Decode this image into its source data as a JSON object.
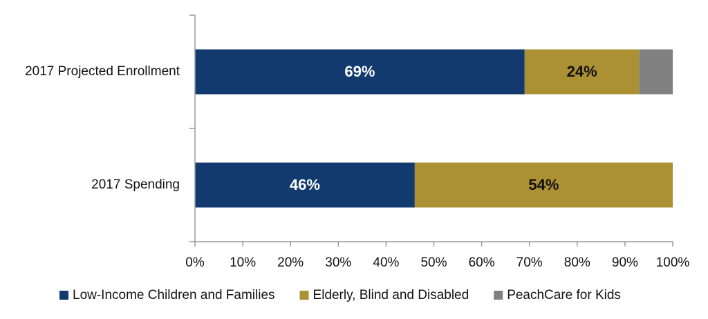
{
  "chart_data": {
    "type": "stacked_bar_horizontal",
    "categories": [
      "2017 Projected Enrollment",
      "2017 Spending"
    ],
    "series": [
      {
        "name": "Low-Income Children and Families",
        "color": "#123a6e",
        "values": [
          69,
          46
        ],
        "value_labels": [
          "69%",
          "46%"
        ]
      },
      {
        "name": "Elderly, Blind and Disabled",
        "color": "#ab9034",
        "values": [
          24,
          54
        ],
        "value_labels": [
          "24%",
          "54%"
        ]
      },
      {
        "name": "PeachCare for Kids",
        "color": "#808080",
        "values": [
          7,
          0
        ]
      }
    ],
    "xlim": [
      0,
      100
    ],
    "xticks": [
      {
        "value": 0,
        "label": "0%"
      },
      {
        "value": 10,
        "label": "10%"
      },
      {
        "value": 20,
        "label": "20%"
      },
      {
        "value": 30,
        "label": "30%"
      },
      {
        "value": 40,
        "label": "40%"
      },
      {
        "value": 50,
        "label": "50%"
      },
      {
        "value": 60,
        "label": "60%"
      },
      {
        "value": 70,
        "label": "70%"
      },
      {
        "value": 80,
        "label": "80%"
      },
      {
        "value": 90,
        "label": "90%"
      },
      {
        "value": 100,
        "label": "100%"
      }
    ],
    "legend": "bottom"
  }
}
